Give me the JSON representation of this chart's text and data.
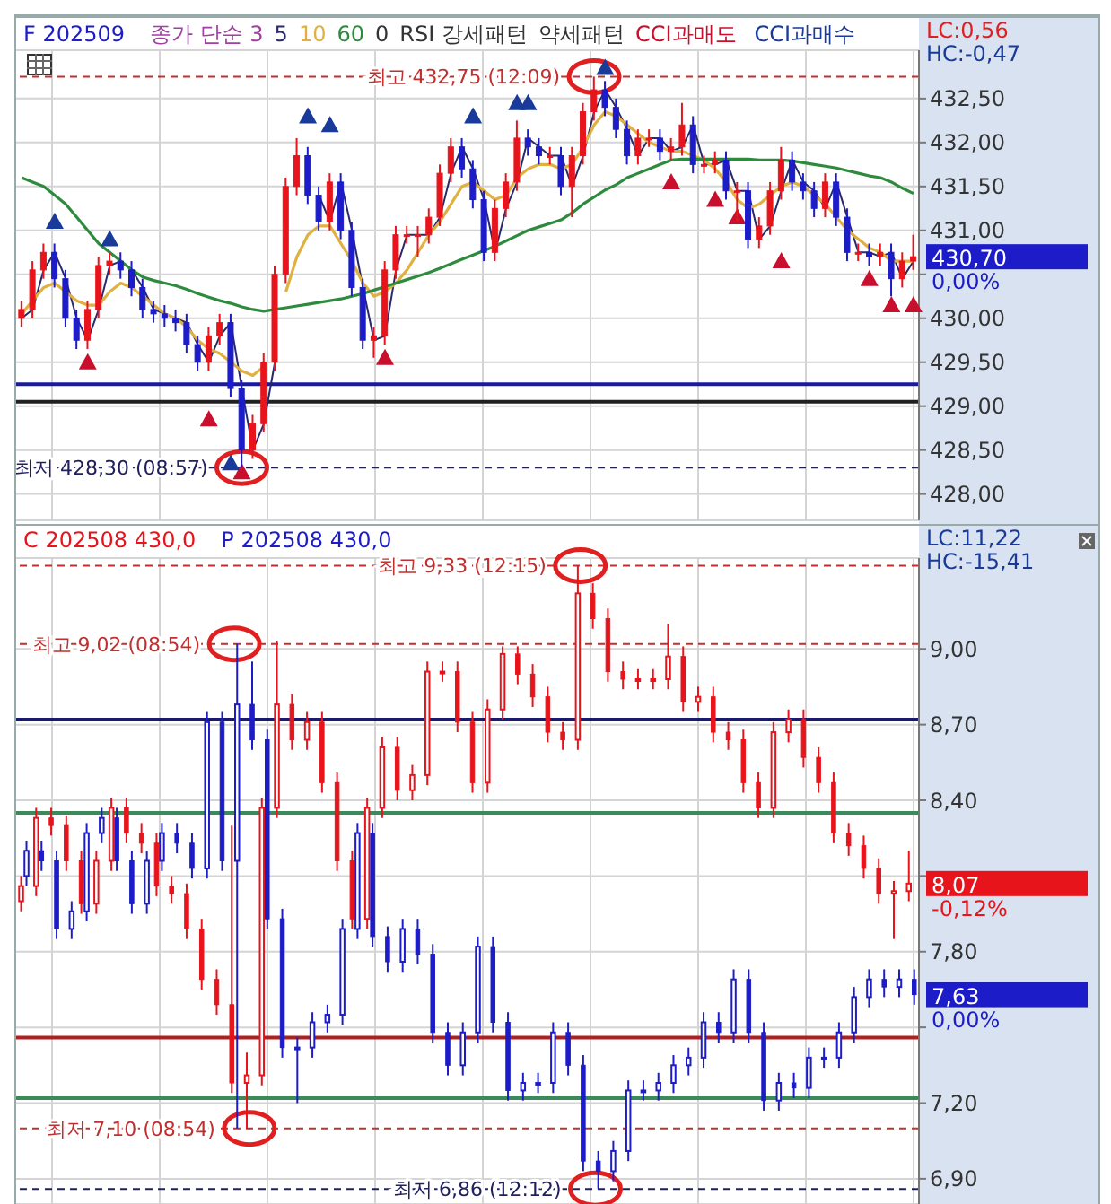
{
  "chart_data": [
    {
      "type": "candlestick",
      "legend": "top left",
      "legend_title": "종가 단순 3",
      "tick_labels": "y",
      "grid": true,
      "categories": [
        null,
        null,
        null,
        null,
        null,
        null,
        null,
        null,
        null,
        null,
        null,
        null,
        null,
        null,
        null,
        null,
        null,
        null,
        null,
        null,
        null,
        null,
        null,
        null,
        null,
        null,
        null,
        null,
        null,
        null,
        null,
        null,
        null,
        null,
        null,
        null,
        null,
        null,
        null,
        null,
        null,
        null,
        null,
        null,
        null,
        null,
        null,
        null,
        null,
        null,
        null,
        null,
        null,
        null,
        null,
        null,
        null,
        null,
        null,
        null,
        null,
        null,
        null,
        null,
        null,
        null,
        null,
        null,
        null,
        null,
        null,
        null,
        null,
        null,
        null,
        null,
        null,
        null,
        null,
        null,
        null,
        null
      ],
      "ylim": [
        427.7,
        433.05
      ],
      "yticks": [
        {
          "value": 428,
          "label": "428,00"
        },
        {
          "value": 428.5,
          "label": "428,50"
        },
        {
          "value": 429,
          "label": "429,00"
        },
        {
          "value": 429.5,
          "label": "429,50"
        },
        {
          "value": 430,
          "label": "430,00"
        },
        {
          "value": 430.5,
          "label": null
        },
        {
          "value": 431,
          "label": "431,00"
        },
        {
          "value": 431.5,
          "label": "431,50"
        },
        {
          "value": 432,
          "label": "432,00"
        },
        {
          "value": 432.5,
          "label": "432,50"
        }
      ],
      "series": [
        {
          "name": "F 202509",
          "type": "candlestick",
          "color": "#1c1cc8",
          "ohlc": [
            [
              430.0,
              430.2,
              429.9,
              430.1
            ],
            [
              430.1,
              430.65,
              430.0,
              430.55
            ],
            [
              430.55,
              430.85,
              430.45,
              430.75
            ],
            [
              430.75,
              430.85,
              430.35,
              430.45
            ],
            [
              430.45,
              430.55,
              429.9,
              430.0
            ],
            [
              430.0,
              430.1,
              429.65,
              429.75
            ],
            [
              429.75,
              430.2,
              429.65,
              430.1
            ],
            [
              430.1,
              430.7,
              430.0,
              430.6
            ],
            [
              430.6,
              430.75,
              430.5,
              430.65
            ],
            [
              430.65,
              430.75,
              430.45,
              430.55
            ],
            [
              430.55,
              430.65,
              430.25,
              430.35
            ],
            [
              430.35,
              430.45,
              430.0,
              430.1
            ],
            [
              430.1,
              430.2,
              429.95,
              430.05
            ],
            [
              430.05,
              430.15,
              429.9,
              430.0
            ],
            [
              430.0,
              430.1,
              429.85,
              429.95
            ],
            [
              429.95,
              430.05,
              429.6,
              429.7
            ],
            [
              429.7,
              429.8,
              429.4,
              429.5
            ],
            [
              429.5,
              429.9,
              429.4,
              429.8
            ],
            [
              429.8,
              430.05,
              429.7,
              429.95
            ],
            [
              429.95,
              430.05,
              429.1,
              429.2
            ],
            [
              429.2,
              429.3,
              428.3,
              428.5
            ],
            [
              428.5,
              428.9,
              428.4,
              428.8
            ],
            [
              428.8,
              429.6,
              428.7,
              429.5
            ],
            [
              429.5,
              430.6,
              429.4,
              430.5
            ],
            [
              430.5,
              431.6,
              430.4,
              431.5
            ],
            [
              431.5,
              432.05,
              431.4,
              431.85
            ],
            [
              431.85,
              431.95,
              431.3,
              431.4
            ],
            [
              431.4,
              431.5,
              431.0,
              431.1
            ],
            [
              431.1,
              431.65,
              431.0,
              431.55
            ],
            [
              431.55,
              431.65,
              430.9,
              431.0
            ],
            [
              431.0,
              431.1,
              430.25,
              430.35
            ],
            [
              430.35,
              430.45,
              429.65,
              429.75
            ],
            [
              429.75,
              429.9,
              429.55,
              429.8
            ],
            [
              429.8,
              430.65,
              429.7,
              430.55
            ],
            [
              430.55,
              431.05,
              430.45,
              430.95
            ],
            [
              430.95,
              431.05,
              430.85,
              430.95
            ],
            [
              430.95,
              431.05,
              430.7,
              430.95
            ],
            [
              430.95,
              431.25,
              430.85,
              431.15
            ],
            [
              431.15,
              431.75,
              431.05,
              431.65
            ],
            [
              431.65,
              432.05,
              431.55,
              431.95
            ],
            [
              431.95,
              432.05,
              431.6,
              431.7
            ],
            [
              431.7,
              431.8,
              431.25,
              431.35
            ],
            [
              431.35,
              431.45,
              430.65,
              430.75
            ],
            [
              430.75,
              431.35,
              430.65,
              431.25
            ],
            [
              431.25,
              431.65,
              431.15,
              431.55
            ],
            [
              431.55,
              432.25,
              431.45,
              432.05
            ],
            [
              432.05,
              432.15,
              431.85,
              431.95
            ],
            [
              431.95,
              432.05,
              431.75,
              431.85
            ],
            [
              431.85,
              431.95,
              431.75,
              431.85
            ],
            [
              431.85,
              431.95,
              431.4,
              431.5
            ],
            [
              431.5,
              431.95,
              431.15,
              431.85
            ],
            [
              431.85,
              432.45,
              431.75,
              432.35
            ],
            [
              432.35,
              432.75,
              432.25,
              432.6
            ],
            [
              432.6,
              432.7,
              432.3,
              432.4
            ],
            [
              432.4,
              432.5,
              432.05,
              432.15
            ],
            [
              432.15,
              432.25,
              431.75,
              431.85
            ],
            [
              431.85,
              432.15,
              431.75,
              432.05
            ],
            [
              432.05,
              432.15,
              431.95,
              432.05
            ],
            [
              432.05,
              432.15,
              431.8,
              431.9
            ],
            [
              431.9,
              432.05,
              431.8,
              431.95
            ],
            [
              431.95,
              432.45,
              431.85,
              432.2
            ],
            [
              432.2,
              432.3,
              431.65,
              431.75
            ],
            [
              431.75,
              431.85,
              431.65,
              431.75
            ],
            [
              431.75,
              431.9,
              431.65,
              431.8
            ],
            [
              431.8,
              431.9,
              431.35,
              431.45
            ],
            [
              431.45,
              431.55,
              431.1,
              431.45
            ],
            [
              431.45,
              431.55,
              430.8,
              430.9
            ],
            [
              430.9,
              431.15,
              430.8,
              431.05
            ],
            [
              431.05,
              431.55,
              430.95,
              431.45
            ],
            [
              431.45,
              431.95,
              431.35,
              431.8
            ],
            [
              431.8,
              431.9,
              431.45,
              431.55
            ],
            [
              431.55,
              431.65,
              431.35,
              431.45
            ],
            [
              431.45,
              431.55,
              431.15,
              431.25
            ],
            [
              431.25,
              431.65,
              431.15,
              431.55
            ],
            [
              431.55,
              431.65,
              431.05,
              431.15
            ],
            [
              431.15,
              431.25,
              430.65,
              430.75
            ],
            [
              430.75,
              430.85,
              430.65,
              430.75
            ],
            [
              430.75,
              430.85,
              430.6,
              430.7
            ],
            [
              430.7,
              430.85,
              430.6,
              430.75
            ],
            [
              430.75,
              430.85,
              430.25,
              430.45
            ],
            [
              430.45,
              430.75,
              430.35,
              430.65
            ],
            [
              430.65,
              430.95,
              430.55,
              430.7
            ]
          ],
          "colors": [
            "#e8141c",
            "#e8141c",
            "#e8141c",
            "#1c1cc8",
            "#1c1cc8",
            "#1c1cc8",
            "#e8141c",
            "#e8141c",
            "#e8141c",
            "#1c1cc8",
            "#1c1cc8",
            "#1c1cc8",
            "#1c1cc8",
            "#1c1cc8",
            "#1c1cc8",
            "#1c1cc8",
            "#1c1cc8",
            "#e8141c",
            "#e8141c",
            "#1c1cc8",
            "#1c1cc8",
            "#e8141c",
            "#e8141c",
            "#e8141c",
            "#e8141c",
            "#e8141c",
            "#1c1cc8",
            "#1c1cc8",
            "#e8141c",
            "#1c1cc8",
            "#1c1cc8",
            "#1c1cc8",
            "#e8141c",
            "#e8141c",
            "#e8141c",
            "#e8141c",
            "#e8141c",
            "#e8141c",
            "#e8141c",
            "#e8141c",
            "#1c1cc8",
            "#1c1cc8",
            "#1c1cc8",
            "#e8141c",
            "#e8141c",
            "#e8141c",
            "#1c1cc8",
            "#1c1cc8",
            "#e8141c",
            "#1c1cc8",
            "#e8141c",
            "#e8141c",
            "#e8141c",
            "#1c1cc8",
            "#1c1cc8",
            "#1c1cc8",
            "#e8141c",
            "#e8141c",
            "#1c1cc8",
            "#e8141c",
            "#e8141c",
            "#1c1cc8",
            "#e8141c",
            "#e8141c",
            "#1c1cc8",
            "#e8141c",
            "#1c1cc8",
            "#e8141c",
            "#e8141c",
            "#e8141c",
            "#1c1cc8",
            "#1c1cc8",
            "#1c1cc8",
            "#e8141c",
            "#1c1cc8",
            "#1c1cc8",
            "#e8141c",
            "#1c1cc8",
            "#e8141c",
            "#1c1cc8",
            "#e8141c",
            "#e8141c"
          ]
        },
        {
          "name": "5",
          "type": "line",
          "color": "#2a2a6a",
          "values": [
            430.0,
            430.1,
            430.55,
            430.75,
            430.45,
            430.0,
            429.75,
            430.1,
            430.6,
            430.65,
            430.55,
            430.35,
            430.1,
            430.05,
            430.0,
            429.95,
            429.7,
            429.5,
            429.8,
            429.95,
            429.2,
            428.5,
            428.8,
            429.5,
            null,
            null,
            null,
            431.4,
            431.1,
            431.55,
            431.0,
            430.35,
            429.75,
            429.8,
            430.55,
            430.95,
            430.95,
            430.95,
            431.15,
            431.65,
            431.95,
            431.7,
            431.35,
            430.75,
            431.25,
            431.55,
            432.05,
            431.95,
            431.85,
            431.85,
            431.5,
            431.85,
            432.35,
            432.6,
            432.4,
            432.15,
            431.85,
            432.05,
            432.05,
            431.9,
            431.95,
            432.2,
            431.75,
            431.75,
            431.8,
            431.45,
            431.45,
            430.9,
            431.05,
            431.45,
            431.8,
            431.55,
            431.45,
            431.25,
            431.55,
            431.15,
            430.75,
            430.75,
            430.7,
            430.75,
            430.45,
            430.65
          ]
        },
        {
          "name": "10",
          "type": "line",
          "color": "#e0b040",
          "values": [
            430.05,
            430.2,
            430.35,
            430.4,
            430.3,
            430.2,
            430.15,
            430.15,
            430.3,
            430.4,
            430.35,
            430.25,
            430.15,
            430.05,
            430.0,
            429.9,
            429.75,
            429.65,
            429.6,
            429.5,
            429.4,
            429.35,
            429.45,
            null,
            430.3,
            430.7,
            430.95,
            431.05,
            431.05,
            430.85,
            430.65,
            430.4,
            430.25,
            430.3,
            430.4,
            430.55,
            430.75,
            430.95,
            431.1,
            431.3,
            431.5,
            431.55,
            431.45,
            431.35,
            431.4,
            431.6,
            431.7,
            431.75,
            431.75,
            431.7,
            431.75,
            431.95,
            432.2,
            432.35,
            432.3,
            432.2,
            432.1,
            432.0,
            431.95,
            431.9,
            431.9,
            431.85,
            431.8,
            431.7,
            431.55,
            431.35,
            431.25,
            431.3,
            431.4,
            431.5,
            431.55,
            431.5,
            431.4,
            431.3,
            431.15,
            431.0,
            430.9,
            430.8,
            430.75,
            430.65,
            430.65,
            430.65
          ]
        },
        {
          "name": "60",
          "type": "line",
          "color": "#2e8b3e",
          "values": [
            431.6,
            431.55,
            431.5,
            431.4,
            431.3,
            431.15,
            431.0,
            430.85,
            430.75,
            430.65,
            430.55,
            430.47,
            430.43,
            430.4,
            430.37,
            430.33,
            430.28,
            430.24,
            430.2,
            430.17,
            430.13,
            430.1,
            430.08,
            430.1,
            430.12,
            430.14,
            430.16,
            430.18,
            430.2,
            430.22,
            430.25,
            430.28,
            430.32,
            430.36,
            430.4,
            430.44,
            430.48,
            430.52,
            430.57,
            430.62,
            430.67,
            430.72,
            430.77,
            430.82,
            430.88,
            430.94,
            431.0,
            431.04,
            431.08,
            431.12,
            431.2,
            431.3,
            431.38,
            431.46,
            431.52,
            431.6,
            431.65,
            431.7,
            431.75,
            431.8,
            431.81,
            431.81,
            431.81,
            431.81,
            431.81,
            431.81,
            431.81,
            431.8,
            431.8,
            431.8,
            431.79,
            431.77,
            431.75,
            431.73,
            431.71,
            431.68,
            431.65,
            431.62,
            431.6,
            431.55,
            431.48,
            431.42
          ]
        },
        {
          "name": "CCI과매도",
          "type": "scatter",
          "marker": "triangle",
          "color": "#c8102e",
          "values": [
            null,
            null,
            null,
            null,
            null,
            null,
            429.5,
            null,
            null,
            null,
            null,
            null,
            null,
            null,
            null,
            null,
            null,
            428.85,
            null,
            null,
            428.25,
            null,
            null,
            null,
            null,
            null,
            null,
            null,
            null,
            null,
            null,
            null,
            null,
            429.55,
            null,
            null,
            null,
            null,
            null,
            null,
            null,
            null,
            null,
            null,
            null,
            null,
            null,
            null,
            null,
            null,
            null,
            null,
            null,
            null,
            null,
            null,
            null,
            null,
            null,
            431.55,
            null,
            null,
            null,
            431.35,
            null,
            431.15,
            null,
            null,
            null,
            430.65,
            null,
            null,
            null,
            null,
            null,
            null,
            null,
            430.45,
            null,
            430.15,
            null,
            430.15
          ]
        },
        {
          "name": "CCI과매수",
          "type": "scatter",
          "marker": "triangle",
          "color": "#1a3a9a",
          "values": [
            null,
            null,
            null,
            431.1,
            null,
            null,
            null,
            null,
            430.9,
            null,
            null,
            null,
            null,
            null,
            null,
            null,
            null,
            null,
            null,
            428.35,
            null,
            null,
            null,
            null,
            null,
            null,
            432.3,
            null,
            432.2,
            null,
            null,
            null,
            null,
            null,
            null,
            null,
            null,
            null,
            null,
            null,
            null,
            432.3,
            null,
            null,
            null,
            432.45,
            432.45,
            null,
            null,
            null,
            null,
            null,
            null,
            432.85,
            null,
            null,
            null,
            null,
            null,
            null,
            null,
            null,
            null,
            null,
            null,
            null,
            null,
            null,
            null,
            null,
            null,
            null,
            null,
            null,
            null,
            null,
            null,
            null,
            null,
            null,
            null,
            null
          ]
        }
      ],
      "ref_lines": [
        {
          "axis": "y",
          "value": 432.75,
          "label": "최고 432,75 (12:09)",
          "color": "#c03030",
          "line_style": "dashed"
        },
        {
          "axis": "y",
          "value": 429.25,
          "color": "#1a1aa0"
        },
        {
          "axis": "y",
          "value": 429.05,
          "color": "#202020"
        },
        {
          "axis": "y",
          "value": 428.3,
          "label": "최저 428,30 (08:57)",
          "color": "#202060",
          "line_style": "dashed"
        }
      ],
      "annotations": [
        "0",
        "RSI 강세패턴",
        "약세패턴",
        "LC:0,56",
        "HC:-0,47",
        "430,70",
        "0,00%"
      ]
    },
    {
      "type": "candlestick",
      "legend": "top left",
      "tick_labels": "y",
      "grid": true,
      "categories": [
        null,
        null,
        null,
        null,
        null,
        null,
        null,
        null,
        null,
        null,
        null,
        null,
        null,
        null,
        null,
        null,
        null,
        null,
        null,
        null,
        null,
        null,
        null,
        null,
        null,
        null,
        null,
        null,
        null,
        null,
        null,
        null,
        null,
        null,
        null,
        null,
        null,
        null,
        null,
        null,
        null,
        null,
        null,
        null,
        null,
        null,
        null,
        null,
        null,
        null,
        null,
        null,
        null,
        null,
        null,
        null,
        null,
        null,
        null,
        null
      ],
      "ylim": [
        6.8,
        9.36
      ],
      "yticks": [
        {
          "value": 6.9,
          "label": "6,90"
        },
        {
          "value": 7.2,
          "label": "7,20"
        },
        {
          "value": 7.5,
          "label": null
        },
        {
          "value": 7.8,
          "label": "7,80"
        },
        {
          "value": 8.1,
          "label": null
        },
        {
          "value": 8.4,
          "label": "8,40"
        },
        {
          "value": 8.7,
          "label": "8,70"
        },
        {
          "value": 9.0,
          "label": "9,00"
        }
      ],
      "series": [
        {
          "name": "C 202508 430,0",
          "type": "candlestick",
          "color": "#e8141c",
          "ohlc": [
            [
              8.0,
              8.1,
              7.96,
              8.06
            ],
            [
              8.06,
              8.37,
              8.02,
              8.33
            ],
            [
              8.33,
              8.37,
              8.26,
              8.3
            ],
            [
              8.3,
              8.34,
              8.12,
              8.16
            ],
            [
              8.16,
              8.2,
              7.95,
              7.99
            ],
            [
              7.99,
              8.2,
              7.95,
              8.16
            ],
            [
              8.16,
              8.41,
              8.12,
              8.37
            ],
            [
              8.37,
              8.41,
              8.23,
              8.27
            ],
            [
              8.27,
              8.31,
              8.19,
              8.23
            ],
            [
              8.23,
              8.27,
              8.02,
              8.06
            ],
            [
              8.06,
              8.1,
              7.99,
              8.03
            ],
            [
              8.03,
              8.07,
              7.85,
              7.89
            ],
            [
              7.89,
              7.93,
              7.65,
              7.69
            ],
            [
              7.69,
              7.73,
              7.55,
              7.59
            ],
            [
              7.59,
              8.3,
              7.24,
              7.28
            ],
            [
              7.28,
              7.4,
              7.1,
              7.31
            ],
            [
              7.31,
              8.41,
              7.27,
              8.37
            ],
            [
              8.37,
              9.03,
              8.33,
              8.78
            ],
            [
              8.78,
              8.82,
              8.6,
              8.64
            ],
            [
              8.64,
              8.75,
              8.6,
              8.71
            ],
            [
              8.71,
              8.75,
              8.43,
              8.47
            ],
            [
              8.47,
              8.51,
              8.12,
              8.16
            ],
            [
              8.16,
              8.2,
              7.89,
              7.93
            ],
            [
              7.93,
              8.41,
              7.89,
              8.37
            ],
            [
              8.37,
              8.65,
              8.33,
              8.61
            ],
            [
              8.61,
              8.65,
              8.4,
              8.44
            ],
            [
              8.44,
              8.54,
              8.4,
              8.5
            ],
            [
              8.5,
              8.95,
              8.46,
              8.91
            ],
            [
              8.91,
              8.95,
              8.87,
              8.91
            ],
            [
              8.91,
              8.95,
              8.67,
              8.71
            ],
            [
              8.71,
              8.75,
              8.43,
              8.47
            ],
            [
              8.47,
              8.8,
              8.43,
              8.76
            ],
            [
              8.76,
              9.01,
              8.72,
              8.98
            ],
            [
              8.98,
              9.01,
              8.86,
              8.9
            ],
            [
              8.9,
              8.94,
              8.77,
              8.81
            ],
            [
              8.81,
              8.85,
              8.63,
              8.67
            ],
            [
              8.67,
              8.71,
              8.6,
              8.64
            ],
            [
              8.64,
              9.33,
              8.6,
              9.22
            ],
            [
              9.22,
              9.26,
              9.08,
              9.12
            ],
            [
              9.12,
              9.16,
              8.87,
              8.91
            ],
            [
              8.91,
              8.95,
              8.84,
              8.88
            ],
            [
              8.88,
              8.92,
              8.84,
              8.88
            ],
            [
              8.88,
              8.92,
              8.84,
              8.88
            ],
            [
              8.88,
              9.1,
              8.84,
              8.97
            ],
            [
              8.97,
              9.01,
              8.75,
              8.79
            ],
            [
              8.79,
              8.85,
              8.75,
              8.81
            ],
            [
              8.81,
              8.85,
              8.63,
              8.67
            ],
            [
              8.67,
              8.71,
              8.6,
              8.64
            ],
            [
              8.64,
              8.68,
              8.43,
              8.47
            ],
            [
              8.47,
              8.51,
              8.33,
              8.37
            ],
            [
              8.37,
              8.71,
              8.33,
              8.67
            ],
            [
              8.67,
              8.76,
              8.63,
              8.72
            ],
            [
              8.72,
              8.76,
              8.53,
              8.57
            ],
            [
              8.57,
              8.61,
              8.43,
              8.47
            ],
            [
              8.47,
              8.51,
              8.23,
              8.27
            ],
            [
              8.27,
              8.31,
              8.18,
              8.22
            ],
            [
              8.22,
              8.26,
              8.09,
              8.13
            ],
            [
              8.13,
              8.17,
              7.99,
              8.03
            ],
            [
              8.03,
              8.08,
              7.85,
              8.04
            ],
            [
              8.04,
              8.2,
              8.0,
              8.07
            ]
          ]
        },
        {
          "name": "P 202508 430,0",
          "type": "candlestick",
          "color": "#1c1cc8",
          "ohlc": [
            [
              8.1,
              8.24,
              8.06,
              8.2
            ],
            [
              8.2,
              8.24,
              8.12,
              8.16
            ],
            [
              8.16,
              8.2,
              7.85,
              7.89
            ],
            [
              7.89,
              8.0,
              7.85,
              7.96
            ],
            [
              7.96,
              8.31,
              7.92,
              8.27
            ],
            [
              8.27,
              8.37,
              8.23,
              8.33
            ],
            [
              8.33,
              8.37,
              8.12,
              8.16
            ],
            [
              8.16,
              8.2,
              7.95,
              7.99
            ],
            [
              7.99,
              8.2,
              7.95,
              8.16
            ],
            [
              8.16,
              8.31,
              8.12,
              8.27
            ],
            [
              8.27,
              8.31,
              8.19,
              8.23
            ],
            [
              8.23,
              8.27,
              8.09,
              8.13
            ],
            [
              8.13,
              8.75,
              8.09,
              8.71
            ],
            [
              8.71,
              8.75,
              8.12,
              8.16
            ],
            [
              8.16,
              9.02,
              7.1,
              8.78
            ],
            [
              8.78,
              8.95,
              8.6,
              8.64
            ],
            [
              8.64,
              8.68,
              7.89,
              7.93
            ],
            [
              7.93,
              7.97,
              7.38,
              7.42
            ],
            [
              7.42,
              7.46,
              7.2,
              7.42
            ],
            [
              7.42,
              7.56,
              7.38,
              7.52
            ],
            [
              7.52,
              7.59,
              7.48,
              7.55
            ],
            [
              7.55,
              7.93,
              7.51,
              7.89
            ],
            [
              7.89,
              8.31,
              7.85,
              8.27
            ],
            [
              8.27,
              8.31,
              7.82,
              7.86
            ],
            [
              7.86,
              7.9,
              7.72,
              7.76
            ],
            [
              7.76,
              7.93,
              7.72,
              7.89
            ],
            [
              7.89,
              7.93,
              7.75,
              7.79
            ],
            [
              7.79,
              7.83,
              7.44,
              7.48
            ],
            [
              7.48,
              7.52,
              7.31,
              7.35
            ],
            [
              7.35,
              7.52,
              7.31,
              7.48
            ],
            [
              7.48,
              7.86,
              7.44,
              7.82
            ],
            [
              7.82,
              7.86,
              7.48,
              7.52
            ],
            [
              7.52,
              7.56,
              7.21,
              7.25
            ],
            [
              7.25,
              7.32,
              7.21,
              7.28
            ],
            [
              7.28,
              7.32,
              7.24,
              7.28
            ],
            [
              7.28,
              7.52,
              7.24,
              7.48
            ],
            [
              7.48,
              7.52,
              7.31,
              7.35
            ],
            [
              7.35,
              7.39,
              6.93,
              6.97
            ],
            [
              6.97,
              7.01,
              6.86,
              6.93
            ],
            [
              6.93,
              7.05,
              6.89,
              7.01
            ],
            [
              7.01,
              7.29,
              6.97,
              7.25
            ],
            [
              7.25,
              7.29,
              7.21,
              7.25
            ],
            [
              7.25,
              7.32,
              7.21,
              7.28
            ],
            [
              7.28,
              7.39,
              7.24,
              7.35
            ],
            [
              7.35,
              7.42,
              7.31,
              7.38
            ],
            [
              7.38,
              7.56,
              7.34,
              7.52
            ],
            [
              7.52,
              7.56,
              7.44,
              7.48
            ],
            [
              7.48,
              7.73,
              7.44,
              7.69
            ],
            [
              7.69,
              7.73,
              7.44,
              7.48
            ],
            [
              7.48,
              7.52,
              7.17,
              7.21
            ],
            [
              7.21,
              7.32,
              7.17,
              7.28
            ],
            [
              7.28,
              7.32,
              7.22,
              7.26
            ],
            [
              7.26,
              7.42,
              7.22,
              7.38
            ],
            [
              7.38,
              7.42,
              7.34,
              7.38
            ],
            [
              7.38,
              7.52,
              7.34,
              7.48
            ],
            [
              7.48,
              7.66,
              7.44,
              7.62
            ],
            [
              7.62,
              7.73,
              7.58,
              7.69
            ],
            [
              7.69,
              7.73,
              7.62,
              7.66
            ],
            [
              7.66,
              7.73,
              7.62,
              7.69
            ],
            [
              7.69,
              7.73,
              7.59,
              7.63
            ]
          ]
        }
      ],
      "ref_lines": [
        {
          "axis": "y",
          "value": 9.33,
          "label": "최고 9,33 (12:15)",
          "color": "#c03030",
          "line_style": "dashed"
        },
        {
          "axis": "y",
          "value": 9.02,
          "label": "최고 9,02 (08:54)",
          "color": "#c03030",
          "line_style": "dashed"
        },
        {
          "axis": "y",
          "value": 8.72,
          "color": "#1a1a70"
        },
        {
          "axis": "y",
          "value": 8.35,
          "color": "#3a8a5a"
        },
        {
          "axis": "y",
          "value": 7.46,
          "color": "#b02020"
        },
        {
          "axis": "y",
          "value": 7.22,
          "color": "#3a8a5a"
        },
        {
          "axis": "y",
          "value": 7.1,
          "label": "최저 7,10 (08:54)",
          "color": "#c03030",
          "line_style": "dashed"
        },
        {
          "axis": "y",
          "value": 6.86,
          "label": "최저 6,86 (12:12)",
          "color": "#202060",
          "line_style": "dashed"
        }
      ],
      "annotations": [
        "LC:11,22",
        "HC:-15,41",
        "8,07",
        "-0,12%",
        "7,63",
        "0,00%"
      ]
    }
  ]
}
